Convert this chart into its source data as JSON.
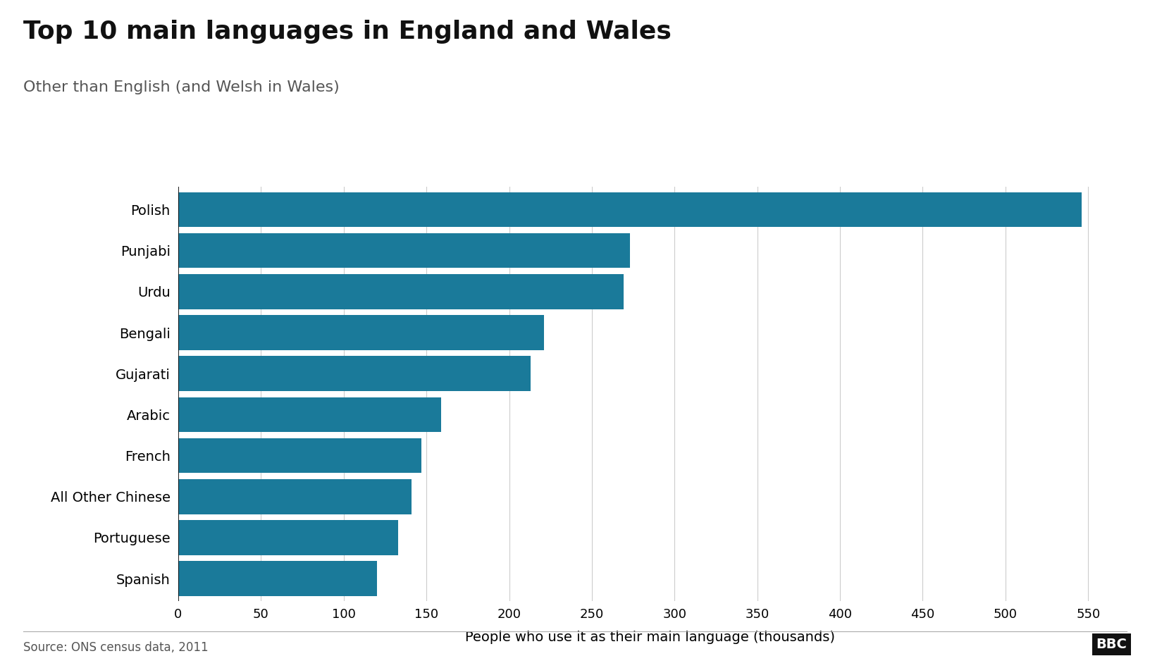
{
  "title": "Top 10 main languages in England and Wales",
  "subtitle": "Other than English (and Welsh in Wales)",
  "source": "Source: ONS census data, 2011",
  "xlabel": "People who use it as their main language (thousands)",
  "languages": [
    "Polish",
    "Punjabi",
    "Urdu",
    "Bengali",
    "Gujarati",
    "Arabic",
    "French",
    "All Other Chinese",
    "Portuguese",
    "Spanish"
  ],
  "values": [
    546,
    273,
    269,
    221,
    213,
    159,
    147,
    141,
    133,
    120
  ],
  "bar_color": "#1a7a9a",
  "background_color": "#ffffff",
  "xlim": [
    0,
    570
  ],
  "xticks": [
    0,
    50,
    100,
    150,
    200,
    250,
    300,
    350,
    400,
    450,
    500,
    550
  ],
  "grid_color": "#cccccc",
  "title_fontsize": 26,
  "subtitle_fontsize": 16,
  "label_fontsize": 14,
  "tick_fontsize": 13,
  "source_fontsize": 12,
  "bar_height": 0.85
}
